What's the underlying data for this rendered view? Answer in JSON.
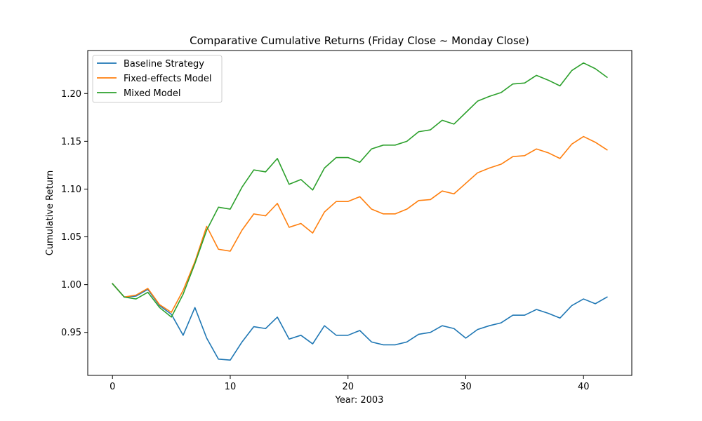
{
  "chart_data": {
    "type": "line",
    "title": "Comparative Cumulative Returns (Friday Close ~ Monday Close)",
    "xlabel": "Year: 2003",
    "ylabel": "Cumulative Return",
    "xlim": [
      -2.1,
      44.1
    ],
    "ylim": [
      0.905,
      1.245
    ],
    "xticks": [
      0,
      10,
      20,
      30,
      40
    ],
    "yticks": [
      0.95,
      1.0,
      1.05,
      1.1,
      1.15,
      1.2
    ],
    "ytick_labels": [
      "0.95",
      "1.00",
      "1.05",
      "1.10",
      "1.15",
      "1.20"
    ],
    "grid": false,
    "legend": "top-left",
    "x": [
      0,
      1,
      2,
      3,
      4,
      5,
      6,
      7,
      8,
      9,
      10,
      11,
      12,
      13,
      14,
      15,
      16,
      17,
      18,
      19,
      20,
      21,
      22,
      23,
      24,
      25,
      26,
      27,
      28,
      29,
      30,
      31,
      32,
      33,
      34,
      35,
      36,
      37,
      38,
      39,
      40,
      41,
      42
    ],
    "series": [
      {
        "name": "Baseline Strategy",
        "color": "#1f77b4",
        "values": [
          1.001,
          0.987,
          0.988,
          0.995,
          0.978,
          0.969,
          0.947,
          0.976,
          0.944,
          0.922,
          0.921,
          0.94,
          0.956,
          0.954,
          0.966,
          0.943,
          0.947,
          0.938,
          0.957,
          0.947,
          0.947,
          0.952,
          0.94,
          0.937,
          0.937,
          0.94,
          0.948,
          0.95,
          0.957,
          0.954,
          0.944,
          0.953,
          0.957,
          0.96,
          0.968,
          0.968,
          0.974,
          0.97,
          0.965,
          0.978,
          0.985,
          0.98,
          0.987
        ]
      },
      {
        "name": "Fixed-effects Model",
        "color": "#ff7f0e",
        "values": [
          1.001,
          0.987,
          0.989,
          0.996,
          0.979,
          0.971,
          0.994,
          1.024,
          1.061,
          1.037,
          1.035,
          1.057,
          1.074,
          1.072,
          1.085,
          1.06,
          1.064,
          1.054,
          1.076,
          1.087,
          1.087,
          1.092,
          1.079,
          1.074,
          1.074,
          1.079,
          1.088,
          1.089,
          1.098,
          1.095,
          1.106,
          1.117,
          1.122,
          1.126,
          1.134,
          1.135,
          1.142,
          1.138,
          1.132,
          1.147,
          1.155,
          1.149,
          1.141
        ]
      },
      {
        "name": "Mixed Model",
        "color": "#2ca02c",
        "values": [
          1.001,
          0.987,
          0.985,
          0.992,
          0.976,
          0.966,
          0.99,
          1.022,
          1.057,
          1.081,
          1.079,
          1.102,
          1.12,
          1.118,
          1.132,
          1.105,
          1.11,
          1.099,
          1.122,
          1.133,
          1.133,
          1.128,
          1.142,
          1.146,
          1.146,
          1.15,
          1.16,
          1.162,
          1.172,
          1.168,
          1.18,
          1.192,
          1.197,
          1.201,
          1.21,
          1.211,
          1.219,
          1.214,
          1.208,
          1.224,
          1.232,
          1.226,
          1.217
        ]
      }
    ]
  }
}
